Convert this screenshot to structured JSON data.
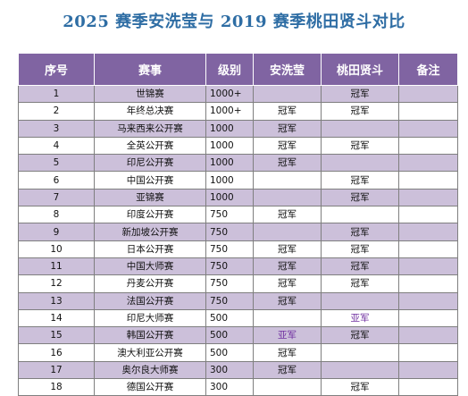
{
  "title": "2025 赛季安洗莹与 2019 赛季桃田贤斗对比",
  "headers": [
    "序号",
    "赛事",
    "级别",
    "安洗莹",
    "桃田贤斗",
    "备注"
  ],
  "colors": {
    "header_bg": "#8064a2",
    "row_alt": "#ccc0da",
    "title": "#2e6da4",
    "silver_text": "#7030a0"
  },
  "rows": [
    {
      "no": "1",
      "event": "世锦赛",
      "level": "1000+",
      "an": "",
      "momota": "冠军",
      "note": ""
    },
    {
      "no": "2",
      "event": "年终总决赛",
      "level": "1000+",
      "an": "冠军",
      "momota": "冠军",
      "note": ""
    },
    {
      "no": "3",
      "event": "马来西来公开赛",
      "level": "1000",
      "an": "冠军",
      "momota": "",
      "note": ""
    },
    {
      "no": "4",
      "event": "全英公开赛",
      "level": "1000",
      "an": "冠军",
      "momota": "冠军",
      "note": ""
    },
    {
      "no": "5",
      "event": "印尼公开赛",
      "level": "1000",
      "an": "冠军",
      "momota": "",
      "note": ""
    },
    {
      "no": "6",
      "event": "中国公开赛",
      "level": "1000",
      "an": "",
      "momota": "冠军",
      "note": ""
    },
    {
      "no": "7",
      "event": "亚锦赛",
      "level": "1000",
      "an": "",
      "momota": "冠军",
      "note": ""
    },
    {
      "no": "8",
      "event": "印度公开赛",
      "level": "750",
      "an": "冠军",
      "momota": "",
      "note": ""
    },
    {
      "no": "9",
      "event": "新加坡公开赛",
      "level": "750",
      "an": "",
      "momota": "冠军",
      "note": ""
    },
    {
      "no": "10",
      "event": "日本公开赛",
      "level": "750",
      "an": "冠军",
      "momota": "冠军",
      "note": ""
    },
    {
      "no": "11",
      "event": "中国大师赛",
      "level": "750",
      "an": "冠军",
      "momota": "冠军",
      "note": ""
    },
    {
      "no": "12",
      "event": "丹麦公开赛",
      "level": "750",
      "an": "冠军",
      "momota": "冠军",
      "note": ""
    },
    {
      "no": "13",
      "event": "法国公开赛",
      "level": "750",
      "an": "冠军",
      "momota": "",
      "note": ""
    },
    {
      "no": "14",
      "event": "印尼大师赛",
      "level": "500",
      "an": "",
      "momota": "亚军",
      "note": ""
    },
    {
      "no": "15",
      "event": "韩国公开赛",
      "level": "500",
      "an": "亚军",
      "momota": "冠军",
      "note": ""
    },
    {
      "no": "16",
      "event": "澳大利亚公开赛",
      "level": "500",
      "an": "冠军",
      "momota": "",
      "note": ""
    },
    {
      "no": "17",
      "event": "奥尔良大师赛",
      "level": "300",
      "an": "冠军",
      "momota": "",
      "note": ""
    },
    {
      "no": "18",
      "event": "德国公开赛",
      "level": "300",
      "an": "",
      "momota": "冠军",
      "note": ""
    }
  ]
}
